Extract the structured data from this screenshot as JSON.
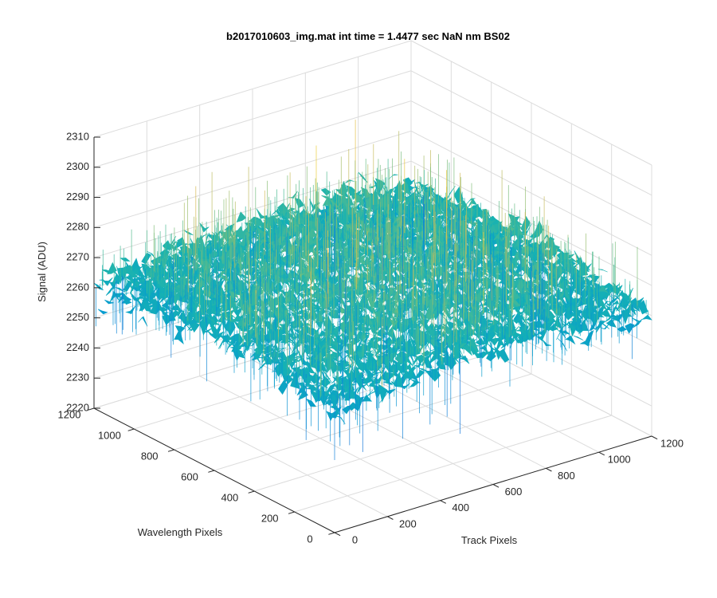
{
  "chart_data": {
    "type": "surface3d",
    "title": "b2017010603_img.mat int time = 1.4477 sec  NaN nm BS02",
    "xlabel": "Track Pixels",
    "ylabel": "Wavelength Pixels",
    "zlabel": "Signal (ADU)",
    "xlim": [
      0,
      1200
    ],
    "ylim": [
      0,
      1200
    ],
    "zlim": [
      2220,
      2310
    ],
    "x_ticks": [
      "0",
      "200",
      "400",
      "600",
      "800",
      "1000",
      "1200"
    ],
    "y_ticks": [
      "0",
      "200",
      "400",
      "600",
      "800",
      "1000",
      "1200"
    ],
    "z_ticks": [
      "2220",
      "2230",
      "2240",
      "2250",
      "2260",
      "2270",
      "2280",
      "2290",
      "2300",
      "2310"
    ],
    "grid": true,
    "colormap": "parula",
    "surface_extent": {
      "x": [
        0,
        1200
      ],
      "y": [
        0,
        1200
      ],
      "z_mean": 2262,
      "z_min": 2227,
      "z_max": 2302
    }
  }
}
